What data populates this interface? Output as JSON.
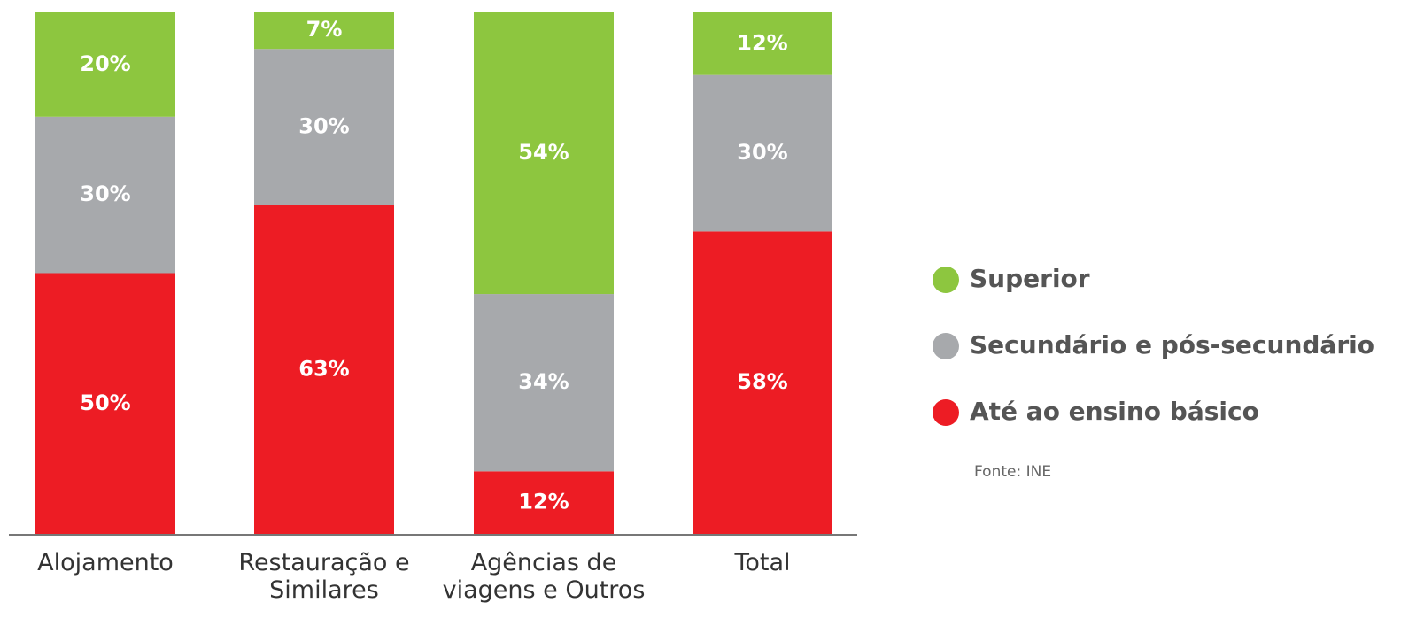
{
  "chart_data": {
    "type": "stacked-bar",
    "categories": [
      "Alojamento",
      "Restauração e Similares",
      "Agências de viagens e Outros",
      "Total"
    ],
    "series": [
      {
        "name": "Superior",
        "color": "#8dc63f",
        "values": [
          20,
          7,
          54,
          12
        ],
        "value_labels": [
          "20%",
          "7%",
          "54%",
          "12%"
        ]
      },
      {
        "name": "Secundário e pós-secundário",
        "color": "#a7a9ac",
        "values": [
          30,
          30,
          34,
          30
        ],
        "value_labels": [
          "30%",
          "30%",
          "34%",
          "30%"
        ]
      },
      {
        "name": "Até ao ensino básico",
        "color": "#ed1c24",
        "values": [
          50,
          63,
          12,
          58
        ],
        "value_labels": [
          "50%",
          "63%",
          "12%",
          "58%"
        ]
      }
    ],
    "ylim": [
      0,
      100
    ],
    "note": "Fonte: INE"
  }
}
